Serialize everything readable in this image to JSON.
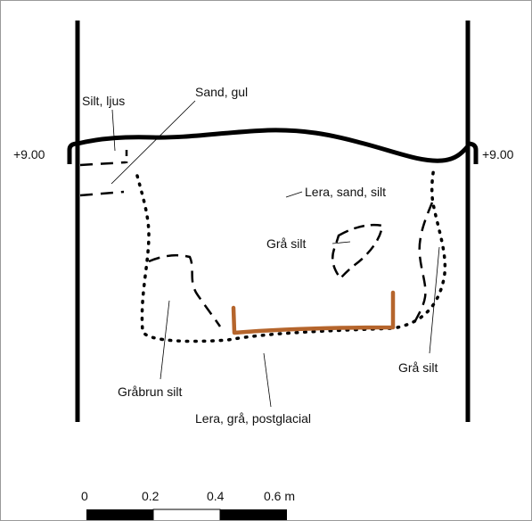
{
  "labels": {
    "silt_ljus": "Silt, ljus",
    "sand_gul": "Sand, gul",
    "elev_left": "+9.00",
    "elev_right": "+9.00",
    "lera_sand_silt": "Lera, sand, silt",
    "gra_silt_inner": "Grå silt",
    "gra_silt_right": "Grå silt",
    "grabrun_silt": "Gråbrun silt",
    "lera_postglacial": "Lera, grå, postglacial"
  },
  "scale": {
    "ticks": [
      "0",
      "0.2",
      "0.4",
      "0.6 m"
    ]
  },
  "colors": {
    "line": "#000000",
    "bottom_deposit": "#b5652c",
    "frame": "#9a9a9a"
  }
}
